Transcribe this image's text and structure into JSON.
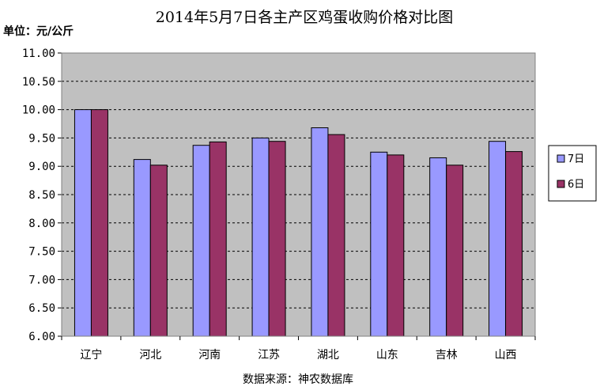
{
  "chart_data": {
    "type": "bar",
    "title": "2014年5月7日各主产区鸡蛋收购价格对比图",
    "unit_label": "单位：元/公斤",
    "source_note": "数据来源：神农数据库",
    "categories": [
      "辽宁",
      "河北",
      "河南",
      "江苏",
      "湖北",
      "山东",
      "吉林",
      "山西"
    ],
    "series": [
      {
        "name": "7日",
        "color": "#9999ff",
        "values": [
          10.0,
          9.12,
          9.37,
          9.5,
          9.68,
          9.25,
          9.15,
          9.44
        ]
      },
      {
        "name": "6日",
        "color": "#993366",
        "values": [
          10.0,
          9.02,
          9.43,
          9.44,
          9.56,
          9.2,
          9.02,
          9.26
        ]
      }
    ],
    "yticks": [
      "6.00",
      "6.50",
      "7.00",
      "7.50",
      "8.00",
      "8.50",
      "9.00",
      "9.50",
      "10.00",
      "10.50",
      "11.00"
    ],
    "ylim": [
      6.0,
      11.0
    ],
    "plot_background": "#c0c0c0",
    "grid": true,
    "legend_position": "right"
  }
}
